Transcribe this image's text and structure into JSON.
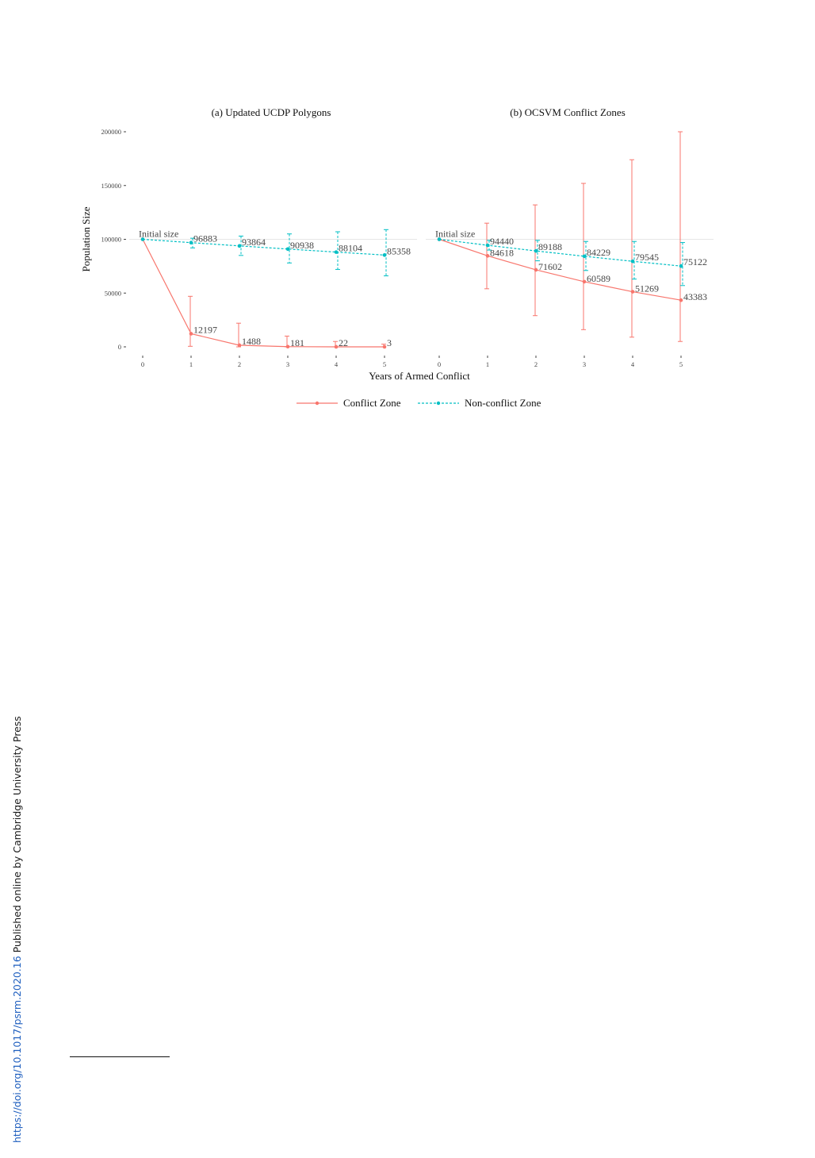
{
  "side_note": {
    "doi": "https://doi.org/10.1017/psrm.2020.16",
    "published": "Published online by Cambridge University Press"
  },
  "colors": {
    "conflict": "#F8766D",
    "nonconflict": "#00BFC4",
    "axis_text": "#444444",
    "ref_line": "#e6e6e6"
  },
  "chart_data": [
    {
      "type": "line",
      "title": "(a) Updated UCDP Polygons",
      "xlabel": "Years of Armed Conflict",
      "ylabel": "Population Size",
      "x": [
        0,
        1,
        2,
        3,
        4,
        5
      ],
      "ylim": [
        0,
        200000
      ],
      "yticks": [
        0,
        50000,
        100000,
        150000,
        200000
      ],
      "grid": false,
      "annotation": "Initial size",
      "series": [
        {
          "name": "Conflict Zone",
          "style": "solid",
          "values": [
            100000,
            12197,
            1488,
            181,
            22,
            3
          ],
          "lower": [
            null,
            500,
            0,
            0,
            0,
            0
          ],
          "upper": [
            null,
            47000,
            22000,
            10000,
            5000,
            2500
          ],
          "labels": [
            "",
            "12197",
            "1488",
            "181",
            "22",
            "3"
          ]
        },
        {
          "name": "Non-conflict Zone",
          "style": "dashed",
          "values": [
            100000,
            96883,
            93864,
            90938,
            88104,
            85358
          ],
          "lower": [
            null,
            92000,
            85000,
            78000,
            72000,
            66000
          ],
          "upper": [
            null,
            101000,
            103000,
            105000,
            107000,
            109000
          ],
          "labels": [
            "",
            "96883",
            "93864",
            "90938",
            "88104",
            "85358"
          ]
        }
      ]
    },
    {
      "type": "line",
      "title": "(b) OCSVM Conflict Zones",
      "xlabel": "",
      "ylabel": "",
      "x": [
        0,
        1,
        2,
        3,
        4,
        5
      ],
      "ylim": [
        0,
        200000
      ],
      "yticks": [
        0,
        50000,
        100000,
        150000,
        200000
      ],
      "grid": false,
      "annotation": "Initial size",
      "series": [
        {
          "name": "Conflict Zone",
          "style": "solid",
          "values": [
            100000,
            84618,
            71602,
            60589,
            51269,
            43383
          ],
          "lower": [
            null,
            54000,
            29000,
            16000,
            9000,
            5000
          ],
          "upper": [
            null,
            115000,
            132000,
            152000,
            174000,
            200000
          ],
          "labels": [
            "",
            "84618",
            "71602",
            "60589",
            "51269",
            "43383"
          ]
        },
        {
          "name": "Non-conflict Zone",
          "style": "dashed",
          "values": [
            100000,
            94440,
            89188,
            84229,
            79545,
            75122
          ],
          "lower": [
            null,
            90000,
            80000,
            71000,
            63000,
            57000
          ],
          "upper": [
            null,
            99000,
            99000,
            98000,
            98000,
            97000
          ],
          "labels": [
            "",
            "94440",
            "89188",
            "84229",
            "79545",
            "75122"
          ]
        }
      ]
    }
  ],
  "legend": {
    "items": [
      "Conflict Zone",
      "Non-conflict Zone"
    ],
    "placement": "bottom"
  }
}
